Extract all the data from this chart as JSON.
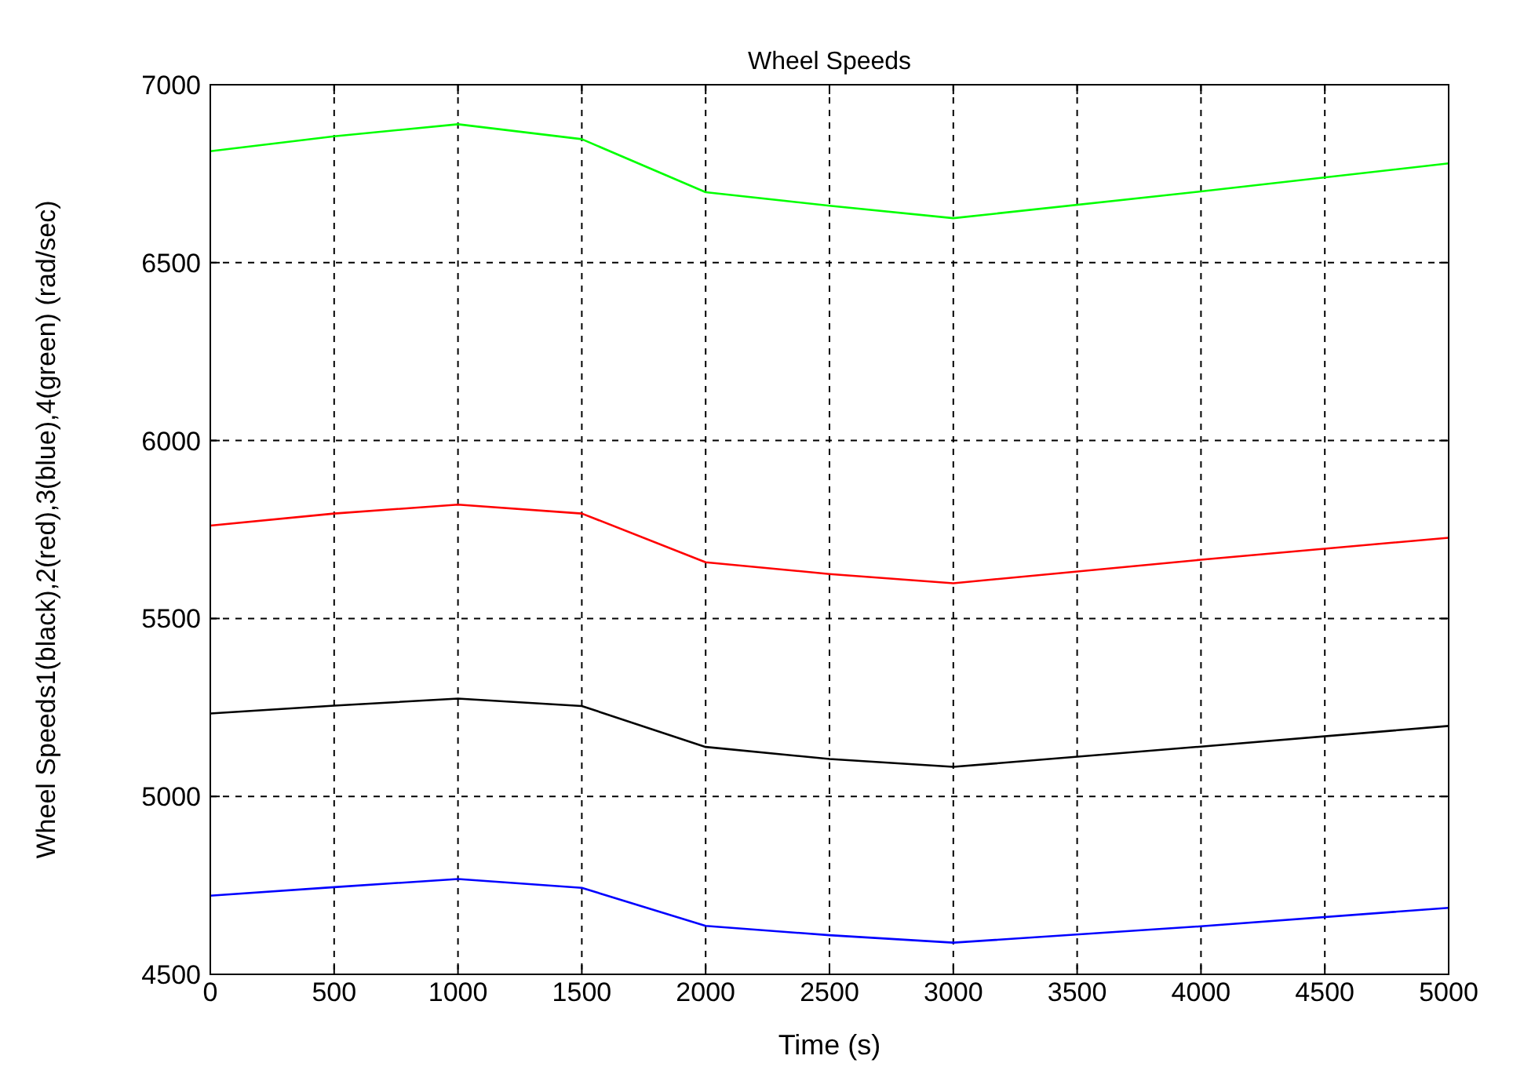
{
  "chart_data": {
    "type": "line",
    "title": "Wheel Speeds",
    "xlabel": "Time (s)",
    "ylabel": "Wheel Speeds1(black),2(red),3(blue),4(green) (rad/sec)",
    "x": [
      0,
      500,
      1000,
      1500,
      2000,
      2500,
      3000,
      4000,
      5000
    ],
    "series": [
      {
        "color": "#000000",
        "values": [
          5233,
          5255,
          5275,
          5254,
          5139,
          5105,
          5083,
          5140,
          5198
        ]
      },
      {
        "color": "#ff0000",
        "values": [
          5761,
          5795,
          5820,
          5795,
          5658,
          5625,
          5599,
          5665,
          5727
        ]
      },
      {
        "color": "#0000ff",
        "values": [
          4721,
          4745,
          4768,
          4743,
          4636,
          4610,
          4589,
          4635,
          4687
        ]
      },
      {
        "color": "#00ff00",
        "values": [
          6813,
          6855,
          6889,
          6847,
          6698,
          6660,
          6625,
          6700,
          6779
        ]
      }
    ],
    "xlim": [
      0,
      5000
    ],
    "xticks": [
      0,
      500,
      1000,
      1500,
      2000,
      2500,
      3000,
      3500,
      4000,
      4500,
      5000
    ],
    "ylim": [
      4500,
      7000
    ],
    "yticks": [
      4500,
      5000,
      5500,
      6000,
      6500,
      7000
    ],
    "grid": true,
    "line_style": "solid"
  }
}
